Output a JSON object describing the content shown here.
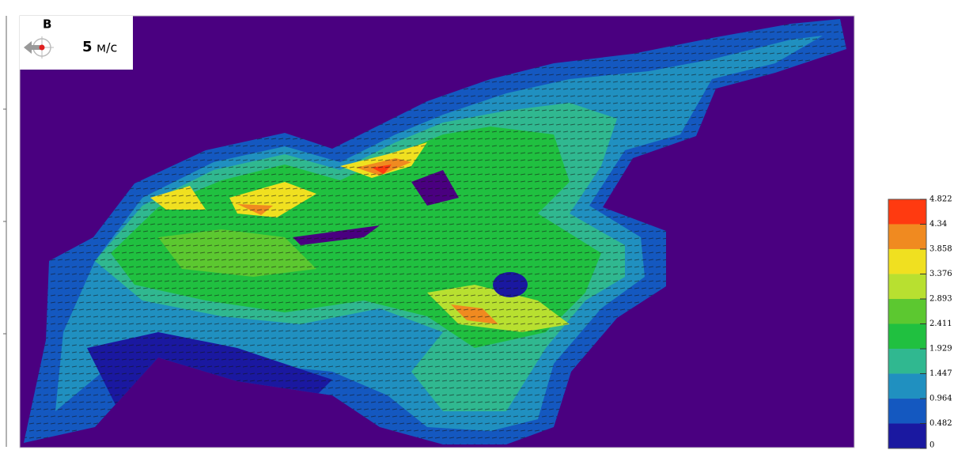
{
  "compass": {
    "direction": "В"
  },
  "wind": {
    "speed": 5,
    "unit": "м/с"
  },
  "colorbar": {
    "ticks": [
      4.822,
      4.34,
      3.858,
      3.376,
      2.893,
      2.411,
      1.929,
      1.447,
      0.964,
      0.482,
      0
    ],
    "colors": [
      "#ff3a10",
      "#f08a20",
      "#f0e020",
      "#b8e030",
      "#5cc830",
      "#20c040",
      "#30b890",
      "#2090c0",
      "#1458c0",
      "#1a18a0",
      "#4a0080"
    ]
  }
}
